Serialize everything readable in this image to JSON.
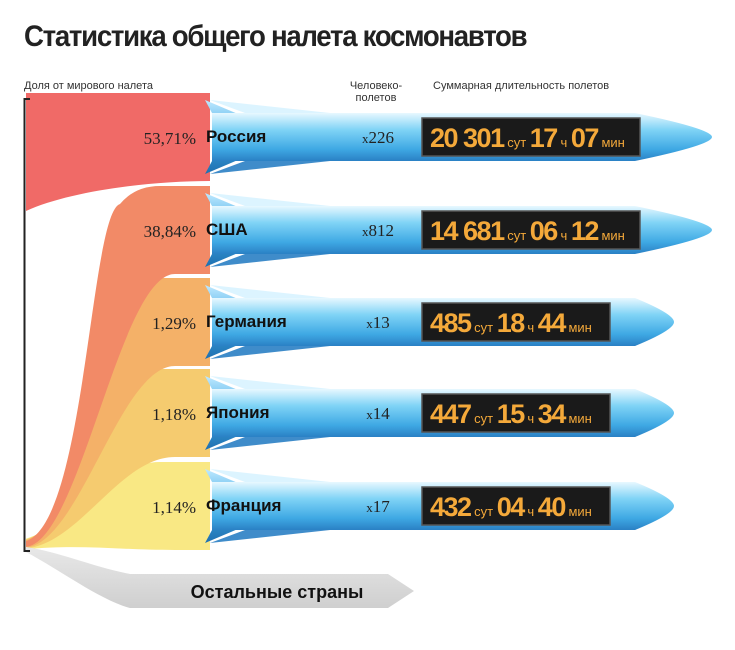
{
  "title": "Статистика общего налета космонавтов",
  "headers": {
    "share": "Доля от мирового налета",
    "flights": "Человеко-\nполетов",
    "duration": "Суммарная длительность  полетов"
  },
  "units": {
    "days": "сут",
    "hours": "ч",
    "minutes": "мин",
    "mult_prefix": "x"
  },
  "colors": {
    "russia": "#f06a67",
    "usa": "#f28a67",
    "germany": "#f4b168",
    "japan": "#f5cb6f",
    "france": "#f9e884",
    "rest": "#dcdcdc",
    "rocket_light": "#cdeeff",
    "rocket_mid": "#5cc3f0",
    "rocket_dark": "#2a8fd0",
    "display_bg": "#1a1a1a",
    "display_text": "#f4a93a"
  },
  "chart_data": {
    "type": "bar",
    "categories": [
      "Россия",
      "США",
      "Германия",
      "Япония",
      "Франция"
    ],
    "series": [
      {
        "name": "Доля от мирового налета",
        "values": [
          53.71,
          38.84,
          1.29,
          1.18,
          1.14
        ],
        "labels": [
          "53,71%",
          "38,84%",
          "1,29%",
          "1,18%",
          "1,14%"
        ]
      },
      {
        "name": "Человеко-полетов",
        "values": [
          226,
          812,
          13,
          14,
          17
        ]
      }
    ],
    "durations": [
      {
        "days": "20 301",
        "hours": "17",
        "minutes": "07"
      },
      {
        "days": "14 681",
        "hours": "06",
        "minutes": "12"
      },
      {
        "days": "485",
        "hours": "18",
        "minutes": "44"
      },
      {
        "days": "447",
        "hours": "15",
        "minutes": "34"
      },
      {
        "days": "432",
        "hours": "04",
        "minutes": "40"
      }
    ],
    "rest_label": "Остальные страны"
  }
}
